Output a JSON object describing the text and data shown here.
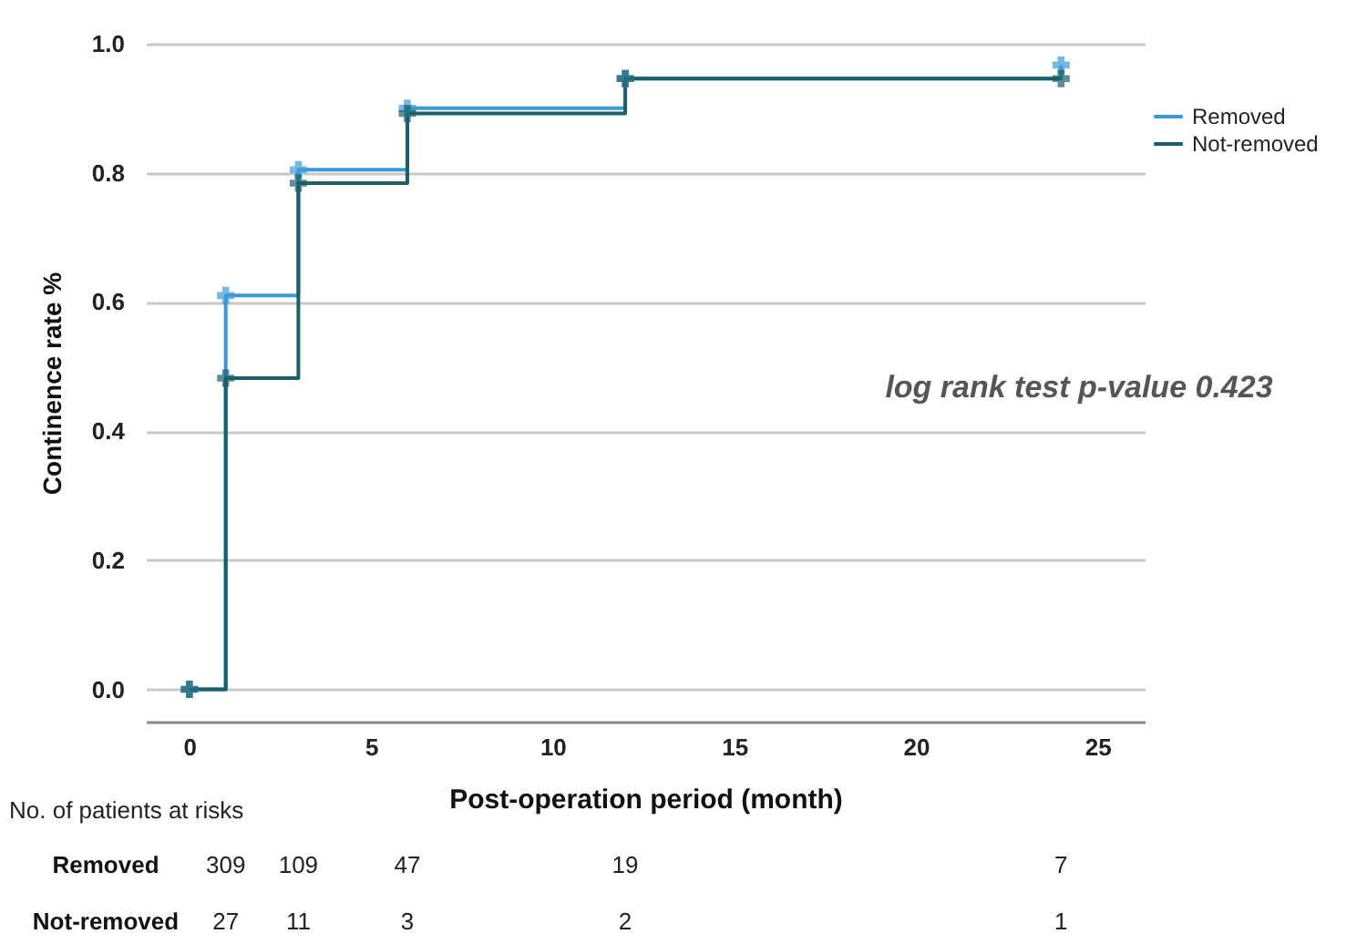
{
  "chart_data": {
    "type": "step",
    "xlabel": "Post-operation period (month)",
    "ylabel": "Continence rate %",
    "x": [
      0,
      1,
      3,
      6,
      12,
      24
    ],
    "series": [
      {
        "name": "Removed",
        "color": "#3a9ad9",
        "values": [
          0,
          0.61,
          0.805,
          0.9,
          0.946,
          0.967
        ]
      },
      {
        "name": "Not-removed",
        "color": "#1a5f6a",
        "values": [
          0,
          0.482,
          0.784,
          0.892,
          0.946,
          0.946
        ]
      }
    ],
    "xlim": [
      -1.2,
      26.3
    ],
    "ylim": [
      -0.05,
      1.0
    ],
    "xticks": [
      0,
      5,
      10,
      15,
      20,
      25
    ],
    "yticks": [
      {
        "value": 0,
        "label": "0.0"
      },
      {
        "value": 0.2,
        "label": "0.2"
      },
      {
        "value": 0.4,
        "label": "0.4"
      },
      {
        "value": 0.6,
        "label": "0.6"
      },
      {
        "value": 0.8,
        "label": "0.8"
      },
      {
        "value": 1,
        "label": "1.0"
      }
    ],
    "grid": "y",
    "legend": "right",
    "marker": "cross",
    "annotations": [
      "log rank test p-value 0.423",
      "No. of patients at risks",
      "309",
      "109",
      "47",
      "19",
      "7",
      "27",
      "11",
      "3",
      "2",
      "1"
    ]
  }
}
